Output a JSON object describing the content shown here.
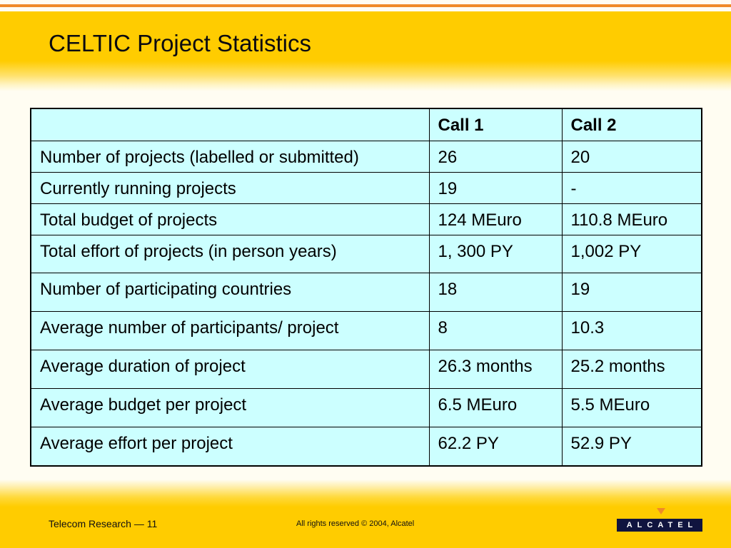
{
  "slide": {
    "title": "CELTIC Project Statistics"
  },
  "table": {
    "columns": [
      "",
      "Call 1",
      "Call 2"
    ],
    "rows": [
      [
        "Number of projects (labelled or submitted)",
        "26",
        "20"
      ],
      [
        "Currently running projects",
        "19",
        "-"
      ],
      [
        "Total budget of projects",
        "124 MEuro",
        "110.8 MEuro"
      ],
      [
        "Total effort of projects (in person years)",
        "1, 300 PY",
        "1,002 PY"
      ],
      [
        "Number of participating countries",
        "18",
        "19"
      ],
      [
        "Average number of participants/ project",
        "8",
        "10.3"
      ],
      [
        "Average duration of project",
        "26.3 months",
        "25.2 months"
      ],
      [
        "Average budget per project",
        "6.5 MEuro",
        "5.5 MEuro"
      ],
      [
        "Average effort per project",
        "62.2 PY",
        "52.9 PY"
      ]
    ]
  },
  "footer": {
    "left": "Telecom Research — 11",
    "center": "All rights reserved © 2004, Alcatel",
    "logo_text": "ALCATEL"
  },
  "colors": {
    "header_band": "#ffcc00",
    "accent_line": "#f08a28",
    "table_background": "#ccffff",
    "logo_background": "#10143f"
  }
}
